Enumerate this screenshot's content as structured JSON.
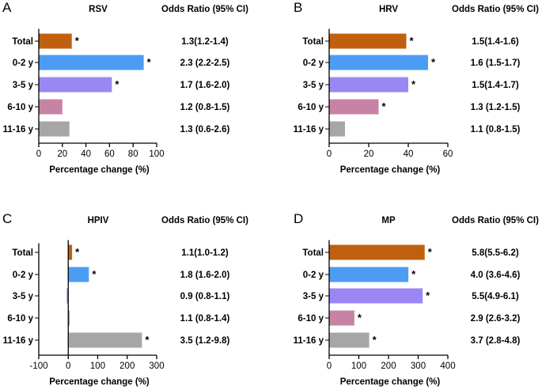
{
  "series_names": [
    "Total",
    "0-2 y",
    "3-5 y",
    "6-10 y",
    "11-16 y"
  ],
  "colors": [
    "#c0600f",
    "#4d9cf4",
    "#9b87f3",
    "#c783a6",
    "#a6a6a6"
  ],
  "chart_data": [
    {
      "type": "bar",
      "orientation": "horizontal",
      "panel_letter": "A",
      "title": "RSV",
      "or_header": "Odds Ratio (95% CI)",
      "categories": [
        "Total",
        "0-2 y",
        "3-5 y",
        "6-10 y",
        "11-16 y"
      ],
      "values": [
        28,
        89,
        62,
        20,
        26
      ],
      "significant": [
        true,
        true,
        true,
        false,
        false
      ],
      "odds_ratios": [
        "1.3(1.2-1.4)",
        "2.3 (2.2-2.5)",
        "1.7 (1.6-2.0)",
        "1.2 (0.8-1.5)",
        "1.3 (0.6-2.6)"
      ],
      "xlabel": "Percentage change (%)",
      "xlim": [
        0,
        100
      ],
      "xticks": [
        0,
        20,
        40,
        60,
        80,
        100
      ],
      "star": "*"
    },
    {
      "type": "bar",
      "orientation": "horizontal",
      "panel_letter": "B",
      "title": "HRV",
      "or_header": "Odds Ratio (95% CI)",
      "categories": [
        "Total",
        "0-2 y",
        "3-5 y",
        "6-10 y",
        "11-16 y"
      ],
      "values": [
        39,
        50,
        40,
        25,
        8
      ],
      "significant": [
        true,
        true,
        true,
        true,
        false
      ],
      "odds_ratios": [
        "1.5(1.4-1.6)",
        "1.6 (1.5-1.7)",
        "1.5(1.4-1.7)",
        "1.3 (1.2-1.5)",
        "1.1 (0.8-1.5)"
      ],
      "xlabel": "Percentage change (%)",
      "xlim": [
        0,
        60
      ],
      "xticks": [
        0,
        20,
        40,
        60
      ],
      "star": "*"
    },
    {
      "type": "bar",
      "orientation": "horizontal",
      "panel_letter": "C",
      "title": "HPIV",
      "or_header": "Odds Ratio (95% CI)",
      "categories": [
        "Total",
        "0-2 y",
        "3-5 y",
        "6-10 y",
        "11-16 y"
      ],
      "values": [
        13,
        70,
        -5,
        5,
        250
      ],
      "significant": [
        true,
        true,
        false,
        false,
        true
      ],
      "odds_ratios": [
        "1.1(1.0-1.2)",
        "1.8 (1.6-2.0)",
        "0.9 (0.8-1.1)",
        "1.1 (0.8-1.4)",
        "3.5 (1.2-9.8)"
      ],
      "xlabel": "Percentage change (%)",
      "xlim": [
        -100,
        300
      ],
      "xticks": [
        -100,
        0,
        100,
        200,
        300
      ],
      "star": "*"
    },
    {
      "type": "bar",
      "orientation": "horizontal",
      "panel_letter": "D",
      "title": "MP",
      "or_header": "Odds Ratio (95% CI)",
      "categories": [
        "Total",
        "0-2 y",
        "3-5 y",
        "6-10 y",
        "11-16 y"
      ],
      "values": [
        322,
        267,
        315,
        85,
        135
      ],
      "significant": [
        true,
        true,
        true,
        true,
        true
      ],
      "odds_ratios": [
        "5.8(5.5-6.2)",
        "4.0 (3.6-4.6)",
        "5.5(4.9-6.1)",
        "2.9 (2.6-3.2)",
        "3.7 (2.8-4.8)"
      ],
      "xlabel": "Percentage change (%)",
      "xlim": [
        0,
        400
      ],
      "xticks": [
        0,
        100,
        200,
        300,
        400
      ],
      "star": "*"
    }
  ]
}
